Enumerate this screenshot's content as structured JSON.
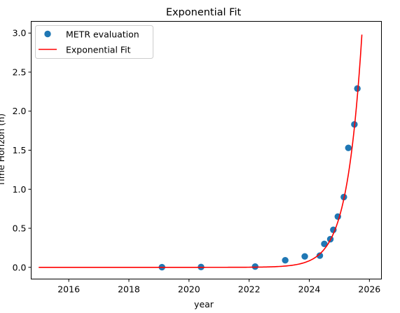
{
  "chart_data": {
    "type": "scatter",
    "title": "Exponential Fit",
    "xlabel": "year",
    "ylabel": "Time Horizon (h)",
    "xlim": [
      2014.75,
      2026.4
    ],
    "ylim": [
      -0.15,
      3.15
    ],
    "xticks": [
      2016,
      2018,
      2020,
      2022,
      2024,
      2026
    ],
    "yticks": [
      0.0,
      0.5,
      1.0,
      1.5,
      2.0,
      2.5,
      3.0
    ],
    "ytick_labels": [
      "0.0",
      "0.5",
      "1.0",
      "1.5",
      "2.0",
      "2.5",
      "3.0"
    ],
    "grid": false,
    "legend_position": "top-left",
    "series": [
      {
        "name": "METR evaluation",
        "kind": "scatter",
        "color": "#1f77b4",
        "points": [
          {
            "x": 2019.1,
            "y": 0.002
          },
          {
            "x": 2020.4,
            "y": 0.004
          },
          {
            "x": 2022.2,
            "y": 0.01
          },
          {
            "x": 2023.2,
            "y": 0.09
          },
          {
            "x": 2023.85,
            "y": 0.14
          },
          {
            "x": 2024.35,
            "y": 0.15
          },
          {
            "x": 2024.5,
            "y": 0.3
          },
          {
            "x": 2024.7,
            "y": 0.36
          },
          {
            "x": 2024.8,
            "y": 0.48
          },
          {
            "x": 2024.95,
            "y": 0.65
          },
          {
            "x": 2025.15,
            "y": 0.9
          },
          {
            "x": 2025.3,
            "y": 1.53
          },
          {
            "x": 2025.5,
            "y": 1.83
          },
          {
            "x": 2025.6,
            "y": 2.29
          }
        ]
      },
      {
        "name": "Exponential Fit",
        "kind": "line",
        "color": "#ff0000",
        "x_start": 2015.0,
        "x_end": 2025.75,
        "y_at_end": 2.98,
        "growth_rate_per_year": 2.04
      }
    ]
  }
}
